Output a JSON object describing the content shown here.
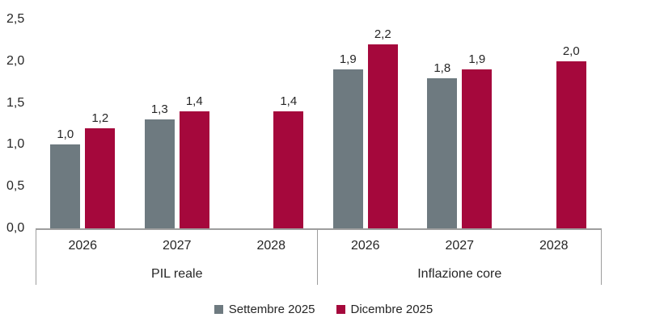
{
  "chart_data": {
    "type": "bar",
    "title": "",
    "xlabel": "",
    "ylabel": "",
    "ylim": [
      0,
      2.5
    ],
    "grid": false,
    "legend_position": "bottom-center",
    "colors": {
      "settembre": "#6E7A80",
      "dicembre": "#A5083C",
      "axis": "#9D9D9D",
      "text": "#262626"
    },
    "y_ticks": [
      {
        "label": "0,0",
        "value": 0.0
      },
      {
        "label": "0,5",
        "value": 0.5
      },
      {
        "label": "1,0",
        "value": 1.0
      },
      {
        "label": "1,5",
        "value": 1.5
      },
      {
        "label": "2,0",
        "value": 2.0
      },
      {
        "label": "2,5",
        "value": 2.5
      }
    ],
    "series": [
      {
        "name": "Settembre 2025",
        "color": "#6E7A80"
      },
      {
        "name": "Dicembre 2025",
        "color": "#A5083C"
      }
    ],
    "groups": [
      {
        "label": "PIL reale",
        "categories": [
          "2026",
          "2027",
          "2028"
        ],
        "values": [
          [
            1.0,
            1.2
          ],
          [
            1.3,
            1.4
          ],
          [
            null,
            1.4
          ]
        ],
        "value_labels": [
          [
            "1,0",
            "1,2"
          ],
          [
            "1,3",
            "1,4"
          ],
          [
            null,
            "1,4"
          ]
        ]
      },
      {
        "label": "Inflazione core",
        "categories": [
          "2026",
          "2027",
          "2028"
        ],
        "values": [
          [
            1.9,
            2.2
          ],
          [
            1.8,
            1.9
          ],
          [
            null,
            2.0
          ]
        ],
        "value_labels": [
          [
            "1,9",
            "2,2"
          ],
          [
            "1,8",
            "1,9"
          ],
          [
            null,
            "2,0"
          ]
        ]
      }
    ]
  }
}
